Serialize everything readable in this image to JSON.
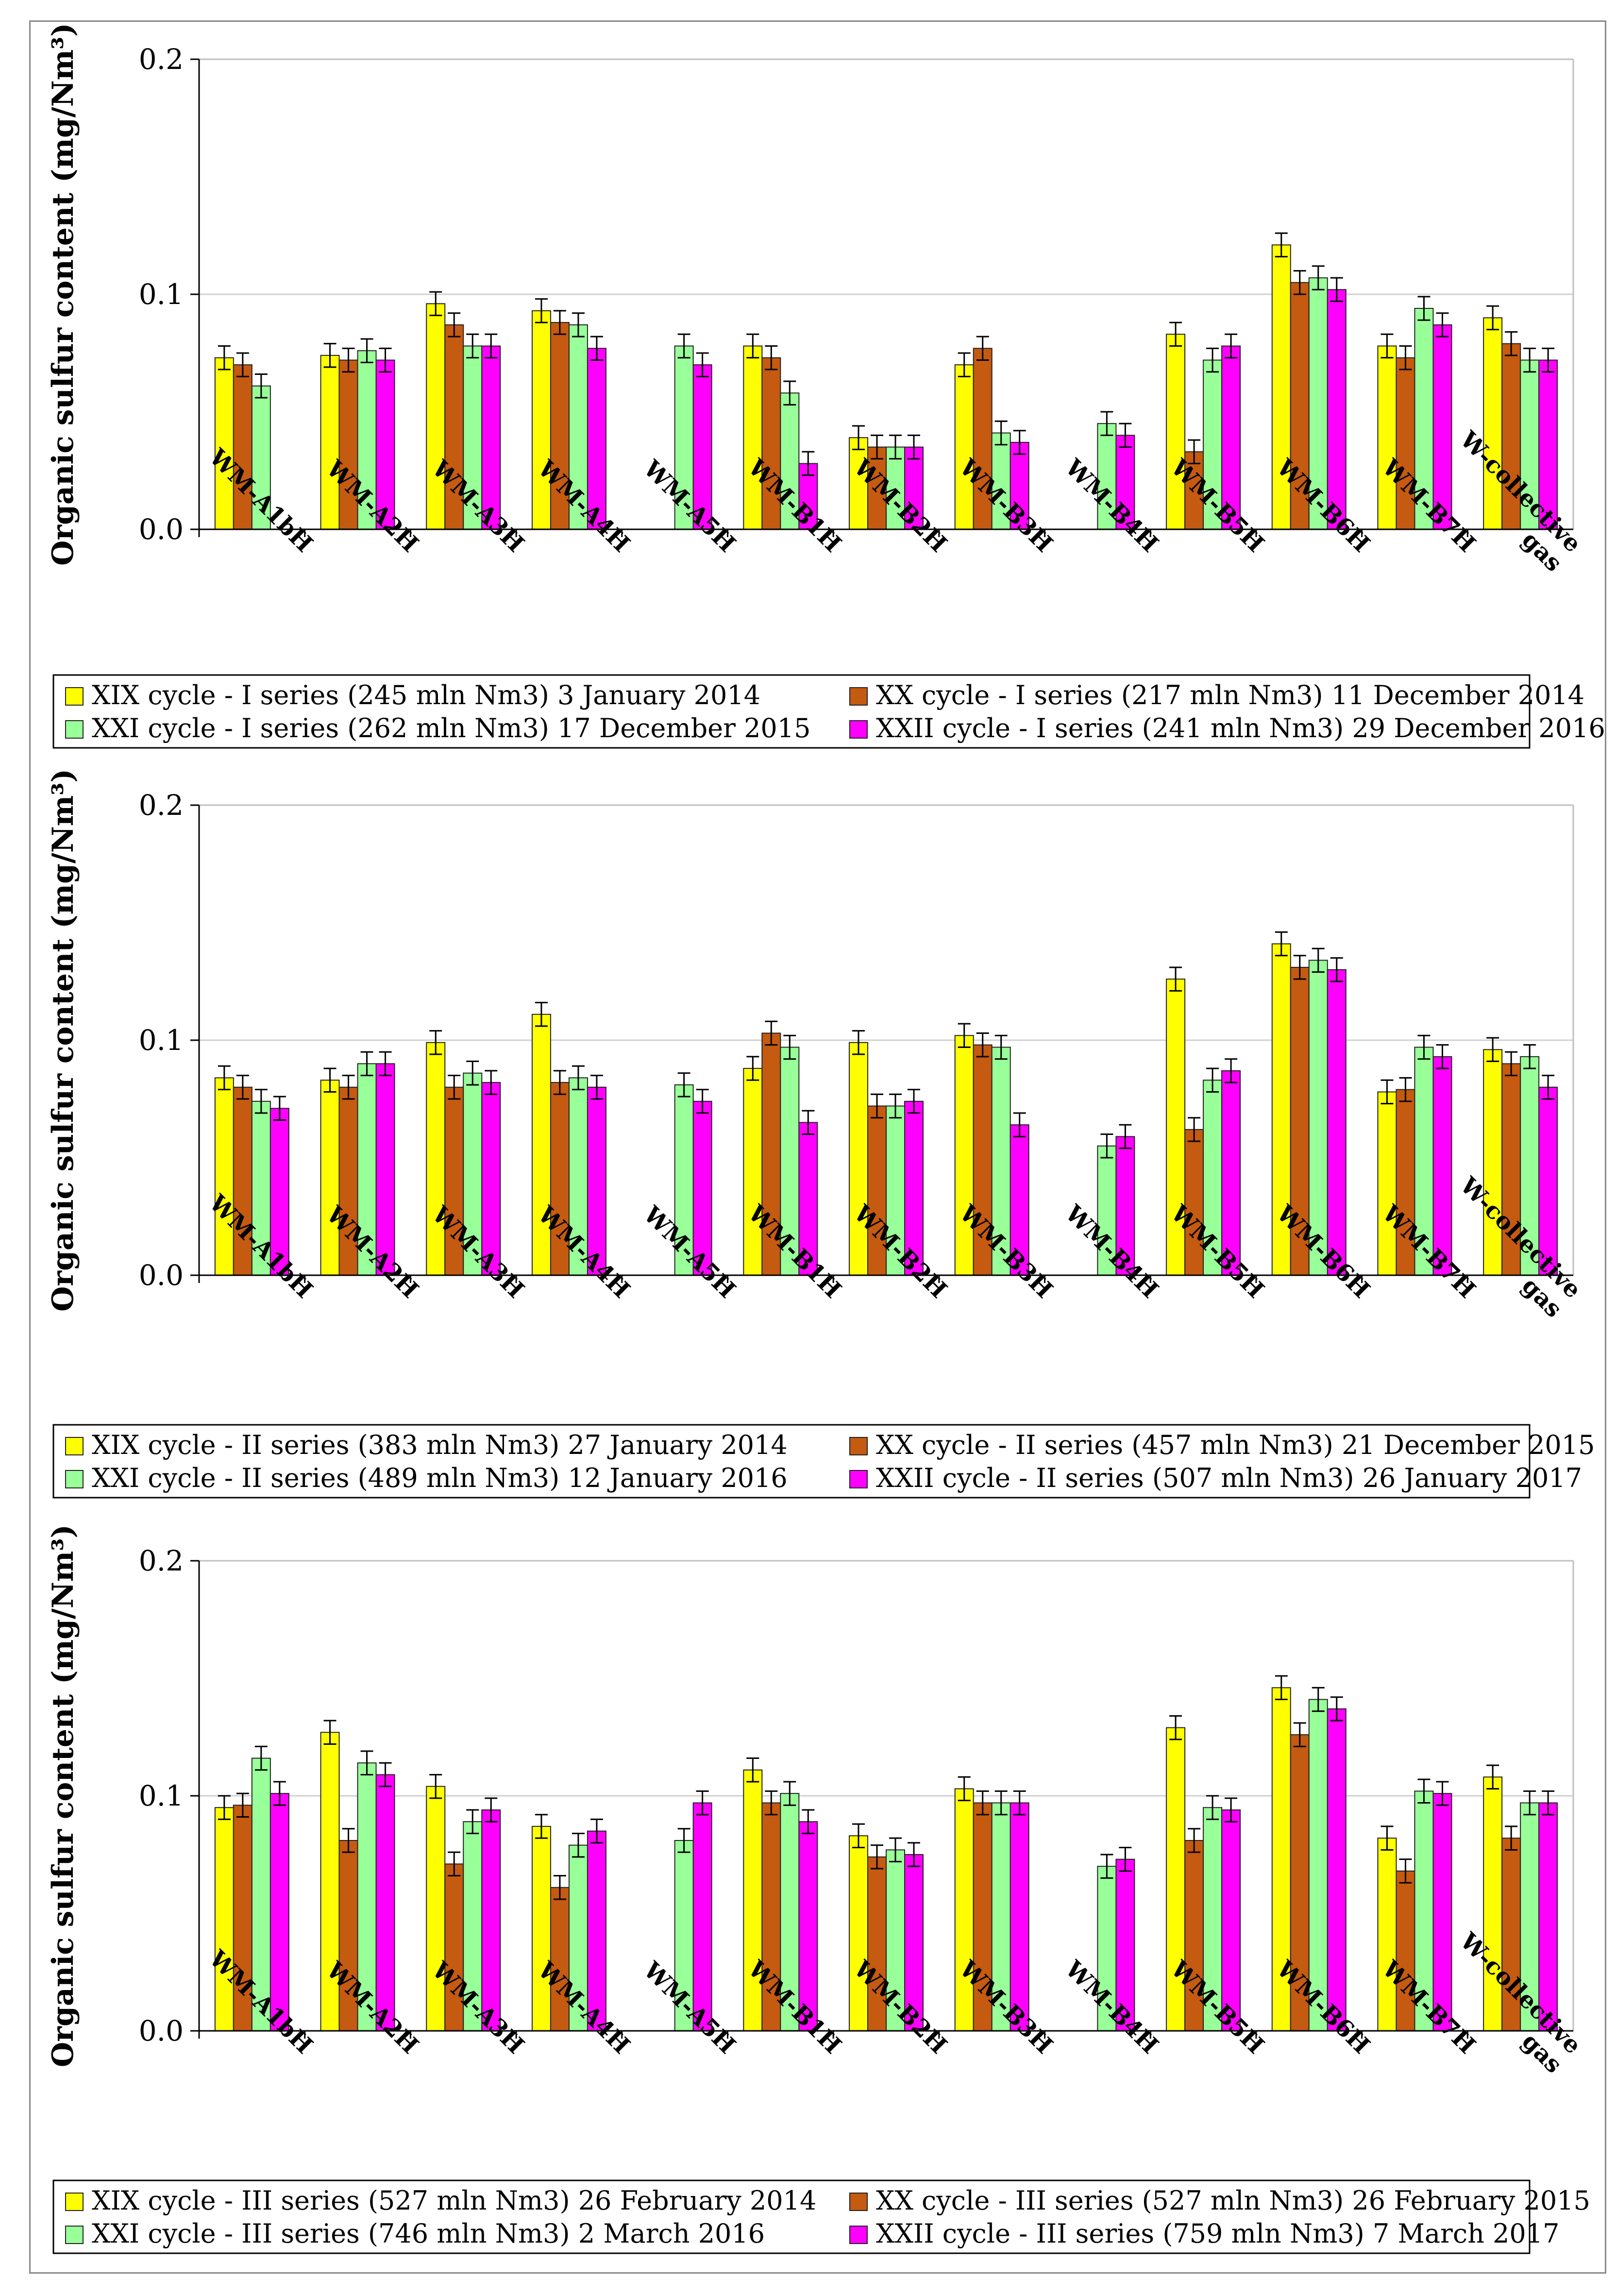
{
  "colors": {
    "s0": "#ffff00",
    "s1": "#c55a11",
    "s2": "#99ff99",
    "s3": "#ff00ff"
  },
  "chart_data": [
    {
      "type": "bar",
      "ylabel": "Organic sulfur content (mg/Nm³)",
      "ylim": [
        0,
        0.2
      ],
      "yticks": [
        "0.0",
        "0.1",
        "0.2"
      ],
      "categories": [
        "WM-A1bH",
        "WM-A2H",
        "WM-A3H",
        "WM-A4H",
        "WM-A5H",
        "WM-B1H",
        "WM-B2H",
        "WM-B3H",
        "WM-B4H",
        "WM-B5H",
        "WM-B6H",
        "WM-B7H",
        "W-collective gas"
      ],
      "series": [
        {
          "name": "XIX cycle - I series (245 mln Nm3) 3 January 2014",
          "values": [
            0.073,
            0.074,
            0.096,
            0.093,
            null,
            0.078,
            0.039,
            0.07,
            null,
            0.083,
            0.121,
            0.078,
            0.09
          ]
        },
        {
          "name": "XX cycle - I series (217 mln Nm3) 11 December 2014",
          "values": [
            0.07,
            0.072,
            0.087,
            0.088,
            null,
            0.073,
            0.035,
            0.077,
            null,
            0.033,
            0.105,
            0.073,
            0.079
          ]
        },
        {
          "name": "XXI cycle - I series (262 mln Nm3) 17 December 2015",
          "values": [
            0.061,
            0.076,
            0.078,
            0.087,
            0.078,
            0.058,
            0.035,
            0.041,
            0.045,
            0.072,
            0.107,
            0.094,
            0.072
          ]
        },
        {
          "name": "XXII cycle - I series (241 mln Nm3) 29 December 2016",
          "values": [
            null,
            0.072,
            0.078,
            0.077,
            0.07,
            0.028,
            0.035,
            0.037,
            0.04,
            0.078,
            0.102,
            0.087,
            0.072
          ]
        }
      ]
    },
    {
      "type": "bar",
      "ylabel": "Organic sulfur content (mg/Nm³)",
      "ylim": [
        0,
        0.2
      ],
      "yticks": [
        "0.0",
        "0.1",
        "0.2"
      ],
      "categories": [
        "WM-A1bH",
        "WM-A2H",
        "WM-A3H",
        "WM-A4H",
        "WM-A5H",
        "WM-B1H",
        "WM-B2H",
        "WM-B3H",
        "WM-B4H",
        "WM-B5H",
        "WM-B6H",
        "WM-B7H",
        "W-collective gas"
      ],
      "series": [
        {
          "name": "XIX cycle - II series (383 mln Nm3) 27 January 2014",
          "values": [
            0.084,
            0.083,
            0.099,
            0.111,
            null,
            0.088,
            0.099,
            0.102,
            null,
            0.126,
            0.141,
            0.078,
            0.096
          ]
        },
        {
          "name": "XX cycle - II series (457 mln Nm3) 21 December 2015",
          "values": [
            0.08,
            0.08,
            0.08,
            0.082,
            null,
            0.103,
            0.072,
            0.098,
            null,
            0.062,
            0.131,
            0.079,
            0.09
          ]
        },
        {
          "name": "XXI cycle - II series (489 mln Nm3) 12 January 2016",
          "values": [
            0.074,
            0.09,
            0.086,
            0.084,
            0.081,
            0.097,
            0.072,
            0.097,
            0.055,
            0.083,
            0.134,
            0.097,
            0.093
          ]
        },
        {
          "name": "XXII cycle - II series (507 mln Nm3) 26 January 2017",
          "values": [
            0.071,
            0.09,
            0.082,
            0.08,
            0.074,
            0.065,
            0.074,
            0.064,
            0.059,
            0.087,
            0.13,
            0.093,
            0.08
          ]
        }
      ]
    },
    {
      "type": "bar",
      "ylabel": "Organic sulfur content (mg/Nm³)",
      "ylim": [
        0,
        0.2
      ],
      "yticks": [
        "0.0",
        "0.1",
        "0.2"
      ],
      "categories": [
        "WM-A1bH",
        "WM-A2H",
        "WM-A3H",
        "WM-A4H",
        "WM-A5H",
        "WM-B1H",
        "WM-B2H",
        "WM-B3H",
        "WM-B4H",
        "WM-B5H",
        "WM-B6H",
        "WM-B7H",
        "W-collective gas"
      ],
      "series": [
        {
          "name": "XIX cycle - III series (527 mln Nm3) 26 February 2014",
          "values": [
            0.095,
            0.127,
            0.104,
            0.087,
            null,
            0.111,
            0.083,
            0.103,
            null,
            0.129,
            0.146,
            0.082,
            0.108
          ]
        },
        {
          "name": "XX cycle - III series (527 mln Nm3) 26 February 2015",
          "values": [
            0.096,
            0.081,
            0.071,
            0.061,
            null,
            0.097,
            0.074,
            0.097,
            null,
            0.081,
            0.126,
            0.068,
            0.082
          ]
        },
        {
          "name": "XXI cycle - III series (746 mln Nm3) 2 March 2016",
          "values": [
            0.116,
            0.114,
            0.089,
            0.079,
            0.081,
            0.101,
            0.077,
            0.097,
            0.07,
            0.095,
            0.141,
            0.102,
            0.097
          ]
        },
        {
          "name": "XXII cycle - III series (759 mln Nm3) 7 March 2017",
          "values": [
            0.101,
            0.109,
            0.094,
            0.085,
            0.097,
            0.089,
            0.075,
            0.097,
            0.073,
            0.094,
            0.137,
            0.101,
            0.097
          ]
        }
      ]
    }
  ]
}
